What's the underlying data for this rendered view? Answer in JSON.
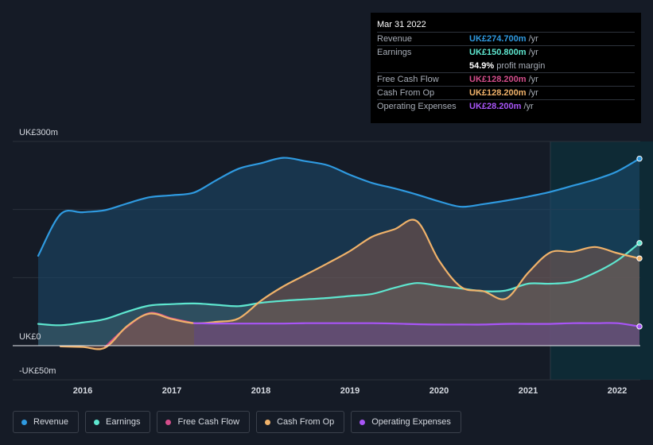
{
  "tooltip": {
    "date": "Mar 31 2022",
    "rows": [
      {
        "label": "Revenue",
        "value": "UK£274.700m",
        "suffix": "/yr",
        "color": "#2f9ae0"
      },
      {
        "label": "Earnings",
        "value": "UK£150.800m",
        "suffix": "/yr",
        "color": "#5ee6cf"
      },
      {
        "label": "",
        "value": "54.9%",
        "suffix": "profit margin",
        "color": "#ffffff"
      },
      {
        "label": "Free Cash Flow",
        "value": "UK£128.200m",
        "suffix": "/yr",
        "color": "#d44d8b"
      },
      {
        "label": "Cash From Op",
        "value": "UK£128.200m",
        "suffix": "/yr",
        "color": "#f0b26a"
      },
      {
        "label": "Operating Expenses",
        "value": "UK£28.200m",
        "suffix": "/yr",
        "color": "#a855f7"
      }
    ]
  },
  "legend": [
    {
      "label": "Revenue",
      "color": "#2f9ae0"
    },
    {
      "label": "Earnings",
      "color": "#5ee6cf"
    },
    {
      "label": "Free Cash Flow",
      "color": "#d44d8b"
    },
    {
      "label": "Cash From Op",
      "color": "#f0b26a"
    },
    {
      "label": "Operating Expenses",
      "color": "#a855f7"
    }
  ],
  "chart_data": {
    "type": "area",
    "ylim": [
      -50,
      300
    ],
    "xlim": [
      2015.5,
      2022.25
    ],
    "y_labels": [
      {
        "value": 300,
        "text": "UK£300m"
      },
      {
        "value": 0,
        "text": "UK£0"
      },
      {
        "value": -50,
        "text": "-UK£50m"
      }
    ],
    "x_ticks": [
      {
        "value": 2016,
        "text": "2016"
      },
      {
        "value": 2017,
        "text": "2017"
      },
      {
        "value": 2018,
        "text": "2018"
      },
      {
        "value": 2019,
        "text": "2019"
      },
      {
        "value": 2020,
        "text": "2020"
      },
      {
        "value": 2021,
        "text": "2021"
      },
      {
        "value": 2022,
        "text": "2022"
      }
    ],
    "highlight_from": 2021.25,
    "series": [
      {
        "name": "Revenue",
        "color": "#2f9ae0",
        "x": [
          2015.5,
          2015.75,
          2016.0,
          2016.25,
          2016.5,
          2016.75,
          2017.0,
          2017.25,
          2017.5,
          2017.75,
          2018.0,
          2018.25,
          2018.5,
          2018.75,
          2019.0,
          2019.25,
          2019.5,
          2019.75,
          2020.0,
          2020.25,
          2020.5,
          2020.75,
          2021.0,
          2021.25,
          2021.5,
          2021.75,
          2022.0,
          2022.25
        ],
        "y": [
          132,
          193,
          196,
          199,
          209,
          218,
          221,
          225,
          243,
          260,
          268,
          276,
          271,
          265,
          251,
          239,
          231,
          222,
          212,
          204,
          208,
          213,
          219,
          226,
          235,
          244,
          256,
          274.7
        ]
      },
      {
        "name": "Earnings",
        "color": "#5ee6cf",
        "x": [
          2015.5,
          2015.75,
          2016.0,
          2016.25,
          2016.5,
          2016.75,
          2017.0,
          2017.25,
          2017.5,
          2017.75,
          2018.0,
          2018.25,
          2018.5,
          2018.75,
          2019.0,
          2019.25,
          2019.5,
          2019.75,
          2020.0,
          2020.25,
          2020.5,
          2020.75,
          2021.0,
          2021.25,
          2021.5,
          2021.75,
          2022.0,
          2022.25
        ],
        "y": [
          32,
          30,
          34,
          39,
          50,
          59,
          61,
          62,
          60,
          58,
          63,
          66,
          68,
          70,
          73,
          76,
          85,
          92,
          88,
          84,
          80,
          81,
          91,
          91,
          94,
          107,
          125,
          150.8
        ]
      },
      {
        "name": "Free Cash Flow",
        "color": "#d44d8b",
        "x": [
          2016.25,
          2016.5,
          2016.75,
          2017.0,
          2017.25
        ],
        "y": [
          -2,
          28,
          48,
          40,
          33
        ]
      },
      {
        "name": "Cash From Op",
        "color": "#f0b26a",
        "x": [
          2015.75,
          2016.0,
          2016.25,
          2016.5,
          2016.75,
          2017.0,
          2017.25,
          2017.5,
          2017.75,
          2018.0,
          2018.25,
          2018.5,
          2018.75,
          2019.0,
          2019.25,
          2019.5,
          2019.75,
          2020.0,
          2020.25,
          2020.5,
          2020.75,
          2021.0,
          2021.25,
          2021.5,
          2021.75,
          2022.0,
          2022.25
        ],
        "y": [
          -1,
          -2,
          -3,
          29,
          47,
          39,
          33,
          35,
          40,
          66,
          87,
          104,
          121,
          139,
          160,
          171,
          183,
          125,
          86,
          80,
          69,
          107,
          137,
          138,
          145,
          136,
          128.2
        ]
      },
      {
        "name": "Operating Expenses",
        "color": "#a855f7",
        "x": [
          2017.25,
          2017.5,
          2017.75,
          2018.0,
          2018.25,
          2018.5,
          2018.75,
          2019.0,
          2019.25,
          2019.5,
          2019.75,
          2020.0,
          2020.25,
          2020.5,
          2020.75,
          2021.0,
          2021.25,
          2021.5,
          2021.75,
          2022.0,
          2022.25
        ],
        "y": [
          33,
          32.5,
          32.5,
          32.5,
          32.5,
          33,
          33,
          33,
          33,
          32.5,
          31.5,
          31,
          31,
          31,
          32,
          32,
          32,
          33,
          33,
          33,
          28.2
        ]
      }
    ]
  }
}
